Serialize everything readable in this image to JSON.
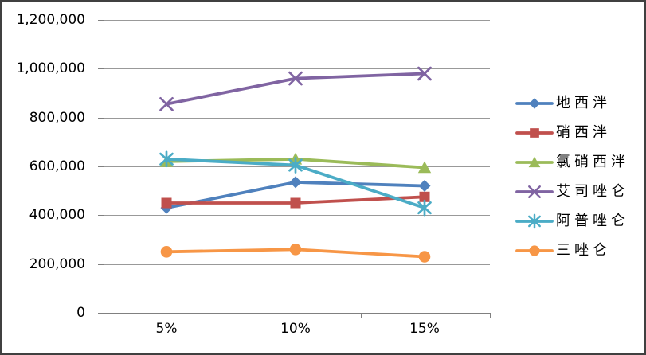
{
  "chart_data": {
    "type": "line",
    "title": "",
    "xlabel": "",
    "ylabel": "",
    "categories": [
      "5%",
      "10%",
      "15%"
    ],
    "y_axis": {
      "min": 0,
      "max": 1200000,
      "step": 200000,
      "tick_labels": [
        "0",
        "200,000",
        "400,000",
        "600,000",
        "800,000",
        "1,000,000",
        "1,200,000"
      ]
    },
    "grid": true,
    "legend_position": "right",
    "series": [
      {
        "name": "地西泮",
        "marker": "diamond",
        "color": "#4F81BD",
        "values": [
          430000,
          535000,
          520000
        ]
      },
      {
        "name": "硝西泮",
        "marker": "square",
        "color": "#C0504D",
        "values": [
          450000,
          450000,
          475000
        ]
      },
      {
        "name": "氯硝西泮",
        "marker": "triangle",
        "color": "#9BBB59",
        "values": [
          620000,
          630000,
          595000
        ]
      },
      {
        "name": "艾司唑仑",
        "marker": "x",
        "color": "#8064A2",
        "values": [
          855000,
          960000,
          980000
        ]
      },
      {
        "name": "阿普唑仑",
        "marker": "asterisk",
        "color": "#4BACC6",
        "values": [
          630000,
          605000,
          430000
        ]
      },
      {
        "name": "三唑仑",
        "marker": "circle",
        "color": "#F79646",
        "values": [
          250000,
          260000,
          230000
        ]
      }
    ]
  },
  "style": {
    "background": "#FFFFFF",
    "border_color": "#404040",
    "axis_color": "#808080",
    "grid_color": "#999999",
    "text_color": "#000000"
  }
}
